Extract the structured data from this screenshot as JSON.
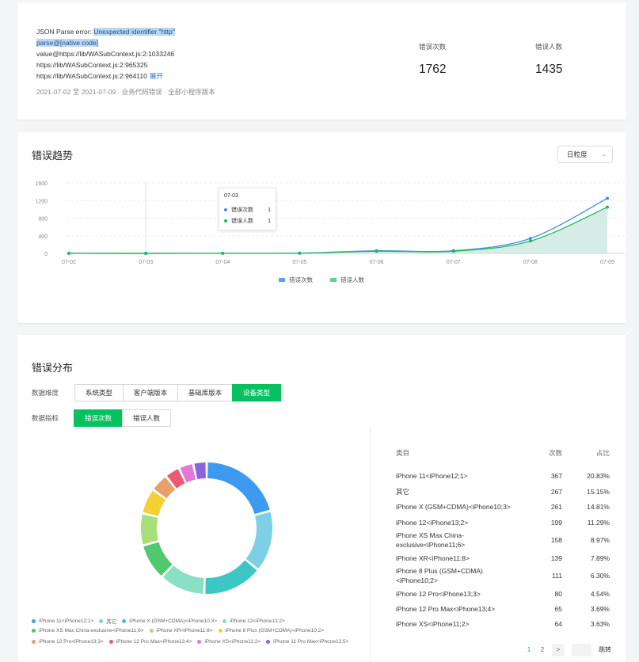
{
  "error_summary": {
    "error_lines": [
      {
        "pre": "JSON Parse error: ",
        "hl": "Unexpected identifier \"http\""
      },
      {
        "pre": "",
        "hl": "parse@[native code]"
      },
      {
        "pre": "value@https://lib/WASubContext.js:2:1033246",
        "hl": ""
      },
      {
        "pre": "https://lib/WASubContext.js:2:965325",
        "hl": ""
      },
      {
        "pre": "https://lib/WASubContext.js:2:964110",
        "hl": ""
      }
    ],
    "expand_label": "展开",
    "meta": "2021-07-02 至  2021-07-09 · 业务代码错误 · 全部小程序版本",
    "count_label": "错误次数",
    "count_value": "1762",
    "users_label": "错误人数",
    "users_value": "1435"
  },
  "trend": {
    "title": "错误趋势",
    "granularity": "日粒度",
    "tooltip": {
      "date": "07-03",
      "rows": [
        {
          "name": "错误次数",
          "value": "1",
          "color": "#3b8ff0"
        },
        {
          "name": "错误人数",
          "value": "1",
          "color": "#1fb85a"
        }
      ]
    }
  },
  "chart_data": {
    "type": "line",
    "x": [
      "07-02",
      "07-03",
      "07-04",
      "07-05",
      "07-06",
      "07-07",
      "07-08",
      "07-09"
    ],
    "y_ticks": [
      "0",
      "400",
      "800",
      "1200",
      "1600"
    ],
    "ylim": [
      0,
      1600
    ],
    "series": [
      {
        "name": "错误次数",
        "color": "#3b8ff0",
        "values": [
          3,
          1,
          3,
          5,
          60,
          60,
          340,
          1250
        ]
      },
      {
        "name": "错误人数",
        "color": "#1fb85a",
        "values": [
          2,
          1,
          2,
          4,
          50,
          50,
          280,
          1050
        ]
      }
    ],
    "legend": [
      {
        "name": "错误次数",
        "color": "#5aa1f2"
      },
      {
        "name": "错误人数",
        "color": "#62d28a"
      }
    ]
  },
  "distribution": {
    "title": "错误分布",
    "dim_label": "数据维度",
    "dim_options": [
      "系统类型",
      "客户端版本",
      "基础库版本",
      "设备类型"
    ],
    "dim_active": 3,
    "metric_label": "数据指标",
    "metric_options": [
      "错误次数",
      "错误人数"
    ],
    "metric_active": 0,
    "slices": [
      {
        "name": "iPhone 11<iPhone12;1>",
        "value": 367,
        "color": "#3d9af0"
      },
      {
        "name": "其它",
        "value": 267,
        "color": "#7dcfe6"
      },
      {
        "name": "iPhone X (GSM+CDMA)<iPhone10;3>",
        "value": 261,
        "color": "#3cc7c4"
      },
      {
        "name": "iPhone 12<iPhone13;2>",
        "value": 199,
        "color": "#8ae0c4"
      },
      {
        "name": "iPhone XS Max China-exclusive<iPhone11;6>",
        "value": 158,
        "color": "#4fc86e"
      },
      {
        "name": "iPhone XR<iPhone11;8>",
        "value": 139,
        "color": "#a7df7a"
      },
      {
        "name": "iPhone 8 Plus (GSM+CDMA)<iPhone10;2>",
        "value": 111,
        "color": "#f5d032"
      },
      {
        "name": "iPhone 12 Pro<iPhone13;3>",
        "value": 80,
        "color": "#e8a06a"
      },
      {
        "name": "iPhone 12 Pro Max<iPhone13;4>",
        "value": 65,
        "color": "#ec5a72"
      },
      {
        "name": "iPhone XS<iPhone11;2>",
        "value": 64,
        "color": "#e17ad6"
      },
      {
        "name": "iPhone 11 Pro Max<iPhone12;5>",
        "value": 58,
        "color": "#8b63e0"
      }
    ],
    "table": {
      "headers": [
        "类目",
        "次数",
        "占比"
      ],
      "rows": [
        {
          "name": "iPhone 11<iPhone12;1>",
          "count": "367",
          "pct": "20.83%"
        },
        {
          "name": "其它",
          "count": "267",
          "pct": "15.15%"
        },
        {
          "name": "iPhone X (GSM+CDMA)<iPhone10;3>",
          "count": "261",
          "pct": "14.81%"
        },
        {
          "name": "iPhone 12<iPhone13;2>",
          "count": "199",
          "pct": "11.29%"
        },
        {
          "name": "iPhone XS Max China-exclusive<iPhone11;6>",
          "count": "158",
          "pct": "8.97%"
        },
        {
          "name": "iPhone XR<iPhone11;8>",
          "count": "139",
          "pct": "7.89%"
        },
        {
          "name": "iPhone 8 Plus (GSM+CDMA)<iPhone10;2>",
          "count": "111",
          "pct": "6.30%"
        },
        {
          "name": "iPhone 12 Pro<iPhone13;3>",
          "count": "80",
          "pct": "4.54%"
        },
        {
          "name": "iPhone 12 Pro Max<iPhone13;4>",
          "count": "65",
          "pct": "3.69%"
        },
        {
          "name": "iPhone XS<iPhone11;2>",
          "count": "64",
          "pct": "3.63%"
        }
      ]
    },
    "pager": {
      "page1": "1",
      "page2": "2",
      "next": ">",
      "jump": "跳转"
    }
  }
}
